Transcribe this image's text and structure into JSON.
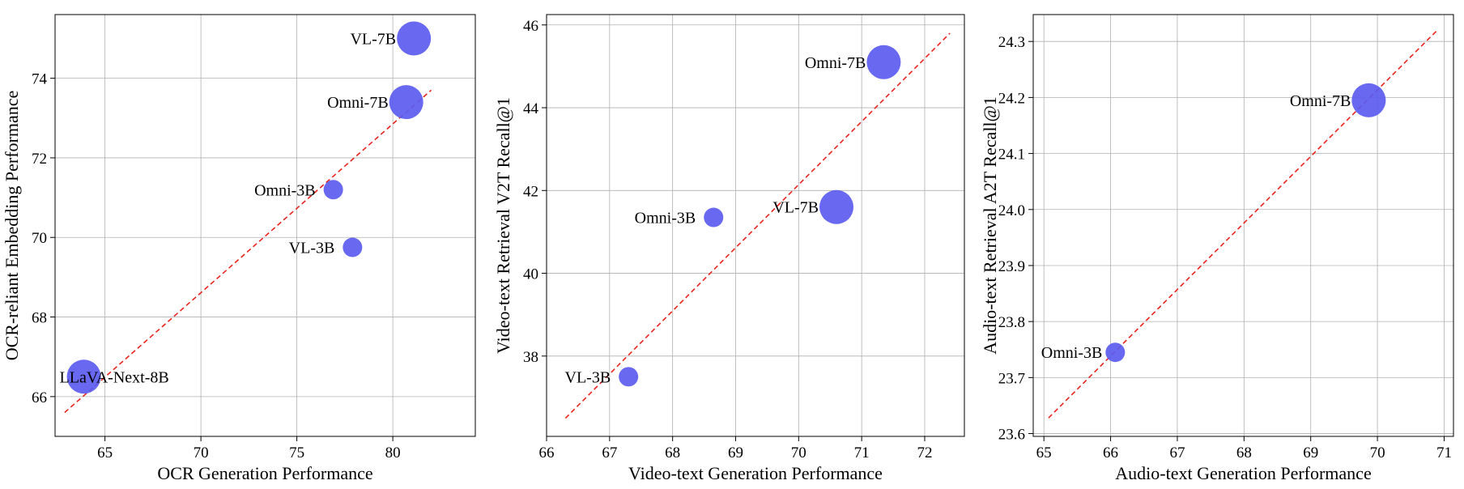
{
  "colors": {
    "point": "#5b5bef",
    "fit_line": "#e8231e"
  },
  "chart_data": [
    {
      "type": "scatter",
      "xlabel": "OCR Generation Performance",
      "ylabel": "OCR-reliant Embedding Performance",
      "xlim": [
        62.4,
        84.3
      ],
      "ylim": [
        65.0,
        75.6
      ],
      "xticks": [
        65,
        70,
        75,
        80
      ],
      "yticks": [
        66,
        68,
        70,
        72,
        74
      ],
      "grid": true,
      "points": [
        {
          "label": "VL-7B",
          "x": 81.1,
          "y": 75.0,
          "size": 1.0
        },
        {
          "label": "Omni-7B",
          "x": 80.7,
          "y": 73.4,
          "size": 1.0
        },
        {
          "label": "Omni-3B",
          "x": 76.9,
          "y": 71.2,
          "size": 0.5
        },
        {
          "label": "VL-3B",
          "x": 77.9,
          "y": 69.75,
          "size": 0.5
        },
        {
          "label": "LLaVA-Next-8B",
          "x": 63.9,
          "y": 66.5,
          "size": 1.0
        }
      ],
      "fit_line": {
        "x": [
          62.9,
          82.0
        ],
        "y": [
          65.6,
          73.7
        ]
      }
    },
    {
      "type": "scatter",
      "xlabel": "Video-text Generation Performance",
      "ylabel": "Video-text Retrieval V2T Recall@1",
      "xlim": [
        66.0,
        72.63
      ],
      "ylim": [
        36.06,
        46.25
      ],
      "xticks": [
        66,
        67,
        68,
        69,
        70,
        71,
        72
      ],
      "yticks": [
        38,
        40,
        42,
        44,
        46
      ],
      "grid": true,
      "points": [
        {
          "label": "Omni-7B",
          "x": 71.35,
          "y": 45.1,
          "size": 1.0
        },
        {
          "label": "Omni-3B",
          "x": 68.65,
          "y": 41.35,
          "size": 0.5
        },
        {
          "label": "VL-7B",
          "x": 70.6,
          "y": 41.6,
          "size": 1.0
        },
        {
          "label": "VL-3B",
          "x": 67.3,
          "y": 37.5,
          "size": 0.5
        }
      ],
      "fit_line": {
        "x": [
          66.3,
          72.4
        ],
        "y": [
          36.5,
          45.8
        ]
      }
    },
    {
      "type": "scatter",
      "xlabel": "Audio-text Generation Performance",
      "ylabel": "Audio-text Retrieval A2T Recall@1",
      "xlim": [
        64.84,
        71.14
      ],
      "ylim": [
        23.595,
        24.348
      ],
      "xticks": [
        65,
        66,
        67,
        68,
        69,
        70,
        71
      ],
      "yticks": [
        23.6,
        23.7,
        23.8,
        23.9,
        24.0,
        24.1,
        24.2,
        24.3
      ],
      "grid": true,
      "points": [
        {
          "label": "Omni-7B",
          "x": 69.87,
          "y": 24.195,
          "size": 1.0
        },
        {
          "label": "Omni-3B",
          "x": 66.07,
          "y": 23.745,
          "size": 0.5
        }
      ],
      "fit_line": {
        "x": [
          65.07,
          70.88
        ],
        "y": [
          23.628,
          24.318
        ]
      }
    }
  ]
}
